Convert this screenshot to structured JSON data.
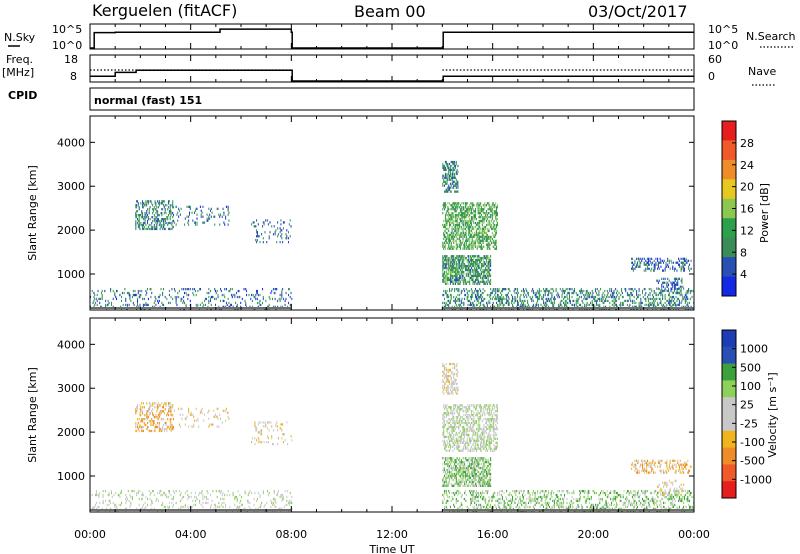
{
  "header": {
    "title": "Kerguelen (fitACF)",
    "beam": "Beam 00",
    "date": "03/Oct/2017"
  },
  "colors": {
    "power": [
      "#1428e6",
      "#2850b4",
      "#3c8c5a",
      "#2da04b",
      "#8cc850",
      "#e6c81e",
      "#f08c28",
      "#f05a28",
      "#e61e1e"
    ],
    "velocity": [
      "#e61e1e",
      "#f05a28",
      "#f08c28",
      "#f0b41e",
      "#c8c8c8",
      "#c8c8c8",
      "#8cd25a",
      "#3ca03c",
      "#2850b4",
      "#1e3cb4"
    ],
    "ground_scatter": "#6e6e6e"
  },
  "chart_data": [
    {
      "type": "line",
      "name": "nsky-nsearch",
      "labels": {
        "left": "N.Sky",
        "right": "N.Search"
      },
      "left_ticks": [
        "10^5",
        "10^0"
      ],
      "right_ticks": [
        "10^5",
        "10^0"
      ],
      "x": [
        "00:00",
        "00:10",
        "01:00",
        "05:06",
        "05:10",
        "08:00",
        "08:02",
        "14:00",
        "14:02",
        "23:58",
        "24:00"
      ],
      "series": [
        {
          "values": [
            0.0,
            3.5,
            3.6,
            3.6,
            4.3,
            3.6,
            0.0,
            0.0,
            3.6,
            3.6,
            3.6
          ]
        }
      ],
      "ylim": [
        0,
        5
      ]
    },
    {
      "type": "line",
      "name": "freq-nave",
      "labels": {
        "left_top": "Freq.",
        "left_bottom": "[MHz]",
        "right": "Nave"
      },
      "left_ticks": [
        "18",
        "8"
      ],
      "right_ticks": [
        "60",
        "0"
      ],
      "x": [
        "00:00",
        "00:50",
        "01:00",
        "01:50",
        "02:00",
        "08:00",
        "08:02",
        "14:00",
        "14:02",
        "24:00"
      ],
      "series": [
        {
          "values": [
            10.0,
            10.0,
            11.6,
            12.5,
            12.5,
            12.5,
            8.0,
            8.0,
            10.0,
            10.0
          ]
        }
      ],
      "ylim": [
        8,
        18
      ]
    },
    {
      "type": "heatmap",
      "name": "cpid",
      "label": "CPID",
      "program": "normal (fast) 151"
    },
    {
      "type": "heatmap",
      "name": "power",
      "ylabel": "Slant Range [km]",
      "yticks": [
        1000,
        2000,
        3000,
        4000
      ],
      "ylim": [
        180,
        4600
      ],
      "xlim": [
        0,
        24
      ],
      "colorbar": {
        "label": "Power [dB]",
        "ticks": [
          "4",
          "8",
          "12",
          "16",
          "20",
          "24",
          "28"
        ],
        "range": [
          0,
          32
        ]
      },
      "regions": [
        {
          "t0": 0.0,
          "t1": 8.0,
          "r0": 180,
          "r1": 650,
          "density": 0.16,
          "v": 6
        },
        {
          "t0": 1.8,
          "t1": 3.3,
          "r0": 2000,
          "r1": 2650,
          "density": 0.35,
          "v": 8
        },
        {
          "t0": 3.3,
          "t1": 5.5,
          "r0": 2100,
          "r1": 2550,
          "density": 0.12,
          "v": 6
        },
        {
          "t0": 6.4,
          "t1": 8.0,
          "r0": 1700,
          "r1": 2200,
          "density": 0.12,
          "v": 6
        },
        {
          "t0": 14.0,
          "t1": 14.6,
          "r0": 2850,
          "r1": 3550,
          "density": 0.45,
          "v": 8
        },
        {
          "t0": 14.0,
          "t1": 16.2,
          "r0": 1550,
          "r1": 2600,
          "density": 0.5,
          "v": 12
        },
        {
          "t0": 14.0,
          "t1": 15.9,
          "r0": 750,
          "r1": 1400,
          "density": 0.6,
          "v": 10
        },
        {
          "t0": 14.0,
          "t1": 24.0,
          "r0": 180,
          "r1": 650,
          "density": 0.3,
          "v": 8
        },
        {
          "t0": 21.5,
          "t1": 23.9,
          "r0": 1050,
          "r1": 1350,
          "density": 0.3,
          "v": 5
        },
        {
          "t0": 22.5,
          "t1": 23.6,
          "r0": 550,
          "r1": 900,
          "density": 0.25,
          "v": 5
        }
      ]
    },
    {
      "type": "heatmap",
      "name": "velocity",
      "ylabel": "Slant Range [km]",
      "yticks": [
        1000,
        2000,
        3000,
        4000
      ],
      "ylim": [
        180,
        4600
      ],
      "xlim": [
        0,
        24
      ],
      "xlabel": "Time UT",
      "xticks": [
        "00:00",
        "04:00",
        "08:00",
        "12:00",
        "16:00",
        "20:00",
        "00:00"
      ],
      "colorbar": {
        "label": "Velocity [m s⁻¹]",
        "ticks": [
          "-1000",
          "-500",
          "-100",
          "-25",
          "25",
          "100",
          "500",
          "1000"
        ]
      },
      "regions": [
        {
          "t0": 0.0,
          "t1": 8.0,
          "r0": 180,
          "r1": 650,
          "density": 0.16,
          "v": 5
        },
        {
          "t0": 1.8,
          "t1": 3.3,
          "r0": 2000,
          "r1": 2650,
          "density": 0.3,
          "v": 3
        },
        {
          "t0": 3.3,
          "t1": 5.5,
          "r0": 2100,
          "r1": 2550,
          "density": 0.1,
          "v": 4
        },
        {
          "t0": 6.4,
          "t1": 8.0,
          "r0": 1700,
          "r1": 2200,
          "density": 0.1,
          "v": 4
        },
        {
          "t0": 14.0,
          "t1": 14.6,
          "r0": 2850,
          "r1": 3550,
          "density": 0.4,
          "v": 4
        },
        {
          "t0": 14.0,
          "t1": 16.2,
          "r0": 1550,
          "r1": 2600,
          "density": 0.45,
          "v": 5
        },
        {
          "t0": 14.0,
          "t1": 15.9,
          "r0": 750,
          "r1": 1400,
          "density": 0.55,
          "v": 6
        },
        {
          "t0": 14.0,
          "t1": 24.0,
          "r0": 180,
          "r1": 650,
          "density": 0.28,
          "v": 6
        },
        {
          "t0": 21.5,
          "t1": 23.9,
          "r0": 1050,
          "r1": 1350,
          "density": 0.3,
          "v": 3
        },
        {
          "t0": 22.5,
          "t1": 23.6,
          "r0": 550,
          "r1": 900,
          "density": 0.2,
          "v": 4
        }
      ]
    }
  ]
}
